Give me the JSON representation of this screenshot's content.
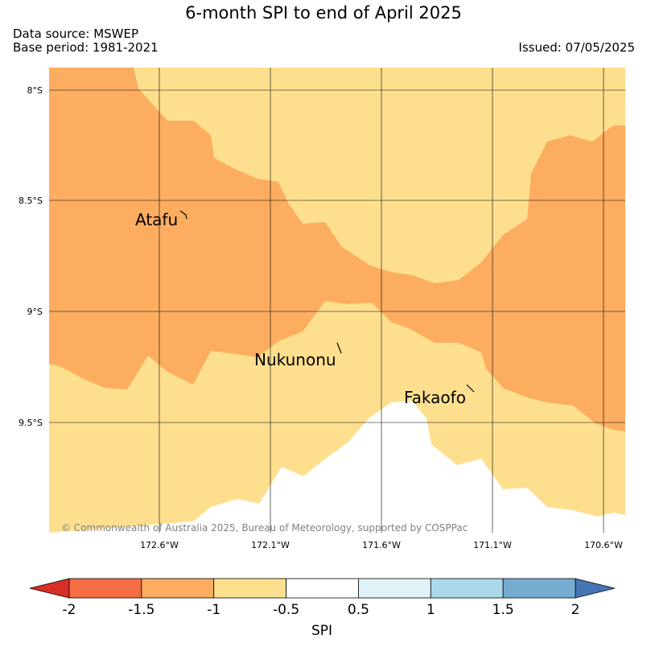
{
  "header": {
    "title": "6-month SPI to end of April 2025",
    "data_source": "Data source: MSWEP",
    "base_period": "Base period: 1981-2021",
    "issued": "Issued: 07/05/2025"
  },
  "map": {
    "lat_labels": [
      "8°S",
      "8.5°S",
      "9°S",
      "9.5°S"
    ],
    "lon_labels": [
      "172.6°W",
      "172.1°W",
      "171.6°W",
      "171.1°W",
      "170.6°W"
    ],
    "places": [
      {
        "name": "Atafu"
      },
      {
        "name": "Nukunonu"
      },
      {
        "name": "Fakaofo"
      }
    ],
    "copyright": "© Commonwealth of Australia 2025, Bureau of Meteorology, supported by COSPPac",
    "colors": {
      "spi_-1.5_-1": "#fcad60",
      "spi_-1_-0.5": "#fedf8e",
      "spi_-0.5_0.5": "#ffffff"
    }
  },
  "colorbar": {
    "label": "SPI",
    "ticks": [
      "-2",
      "-1.5",
      "-1",
      "-0.5",
      "0.5",
      "1",
      "1.5",
      "2"
    ],
    "colors": [
      "#f46d43",
      "#fcad60",
      "#fedf8e",
      "#ffffff",
      "#e0f3f8",
      "#abd9e9",
      "#74add1"
    ],
    "under_color": "#d73027",
    "over_color": "#4575b4"
  }
}
